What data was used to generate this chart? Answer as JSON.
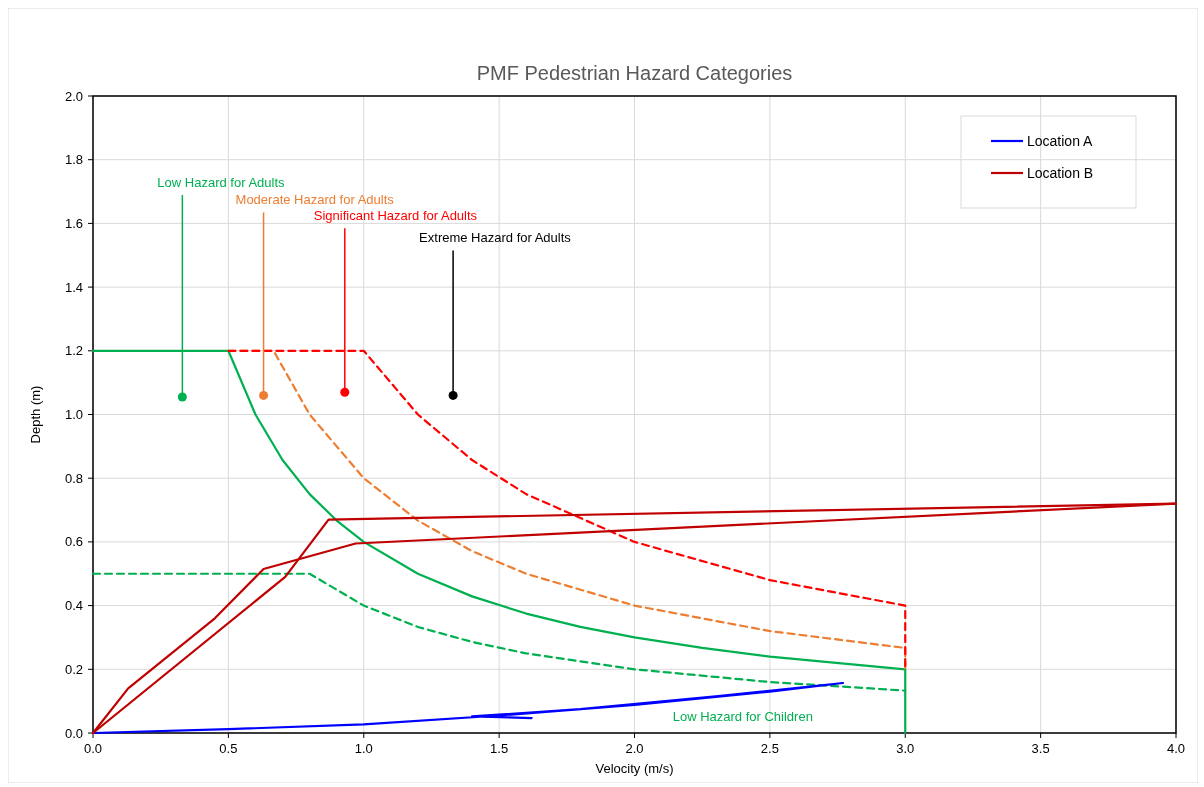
{
  "chart_data": {
    "type": "line",
    "title": "PMF Pedestrian Hazard Categories",
    "xlabel": "Velocity (m/s)",
    "ylabel": "Depth (m)",
    "xlim": [
      0,
      4
    ],
    "xticks": [
      {
        "value": 0,
        "label": "0.0"
      },
      {
        "value": 0.5,
        "label": "0.5"
      },
      {
        "value": 1,
        "label": "1.0"
      },
      {
        "value": 1.5,
        "label": "1.5"
      },
      {
        "value": 2,
        "label": "2.0"
      },
      {
        "value": 2.5,
        "label": "2.5"
      },
      {
        "value": 3,
        "label": "3.0"
      },
      {
        "value": 3.5,
        "label": "3.5"
      },
      {
        "value": 4,
        "label": "4.0"
      }
    ],
    "ylim": [
      0,
      2
    ],
    "yticks": [
      {
        "value": 0,
        "label": "0.0"
      },
      {
        "value": 0.2,
        "label": "0.2"
      },
      {
        "value": 0.4,
        "label": "0.4"
      },
      {
        "value": 0.6,
        "label": "0.6"
      },
      {
        "value": 0.8,
        "label": "0.8"
      },
      {
        "value": 1,
        "label": "1.0"
      },
      {
        "value": 1.2,
        "label": "1.2"
      },
      {
        "value": 1.4,
        "label": "1.4"
      },
      {
        "value": 1.6,
        "label": "1.6"
      },
      {
        "value": 1.8,
        "label": "1.8"
      },
      {
        "value": 2,
        "label": "2.0"
      }
    ],
    "grid": true,
    "legend": "top right",
    "marker": "none",
    "line_style": "solid",
    "series": [
      {
        "color": "#00b050",
        "x": [
          0,
          0.5,
          0.6,
          0.7,
          0.8,
          0.9,
          1.0,
          1.2,
          1.4,
          1.6,
          1.8,
          2.0,
          2.25,
          2.5,
          3.0,
          3.0
        ],
        "values": [
          1.2,
          1.2,
          1.0,
          0.857,
          0.75,
          0.667,
          0.6,
          0.5,
          0.429,
          0.375,
          0.333,
          0.3,
          0.267,
          0.24,
          0.2,
          0
        ]
      },
      {
        "color": "#ed7d31",
        "line_style": "dashed",
        "x": [
          0.5,
          0.667,
          0.8,
          1.0,
          1.2,
          1.4,
          1.6,
          2.0,
          2.5,
          3.0,
          3.0
        ],
        "values": [
          1.2,
          1.2,
          1.0,
          0.8,
          0.667,
          0.571,
          0.5,
          0.4,
          0.32,
          0.267,
          0.2
        ]
      },
      {
        "color": "#ff0000",
        "line_style": "dashed",
        "x": [
          0.5,
          1.0,
          1.2,
          1.4,
          1.6,
          2.0,
          2.5,
          3.0,
          3.0
        ],
        "values": [
          1.2,
          1.2,
          1.0,
          0.857,
          0.75,
          0.6,
          0.48,
          0.4,
          0.2
        ]
      },
      {
        "color": "#00b050",
        "line_style": "dashed",
        "x": [
          0,
          0.8,
          1.0,
          1.2,
          1.4,
          1.6,
          2.0,
          2.5,
          3.0
        ],
        "values": [
          0.5,
          0.5,
          0.4,
          0.333,
          0.286,
          0.25,
          0.2,
          0.16,
          0.133
        ]
      },
      {
        "name": "Location A",
        "color": "#0000ff",
        "x": [
          0,
          0.5,
          1.0,
          1.5,
          2.0,
          2.5,
          2.77,
          2.3,
          1.8,
          1.4,
          1.62
        ],
        "values": [
          0,
          0.012,
          0.027,
          0.055,
          0.088,
          0.13,
          0.157,
          0.115,
          0.075,
          0.052,
          0.047
        ]
      },
      {
        "name": "Location B",
        "color": "#c00000",
        "x": [
          0,
          0.13,
          0.45,
          0.63,
          0.97,
          4.0
        ],
        "values": [
          0,
          0.14,
          0.36,
          0.515,
          0.595,
          0.72
        ]
      },
      {
        "color": "#c00000",
        "x": [
          0,
          0.71,
          0.87,
          4.0
        ],
        "values": [
          0,
          0.49,
          0.67,
          0.72
        ]
      }
    ],
    "annotations": [
      {
        "text": "Low Hazard for Adults",
        "x": 0.33,
        "y": 1.055
      },
      {
        "text": "Moderate Hazard for Adults",
        "x": 0.63,
        "y": 1.06
      },
      {
        "text": "Significant Hazard for Adults",
        "x": 0.93,
        "y": 1.07
      },
      {
        "text": "Extreme Hazard for Adults",
        "x": 1.33,
        "y": 1.06
      },
      "Low Hazard for Children"
    ]
  }
}
